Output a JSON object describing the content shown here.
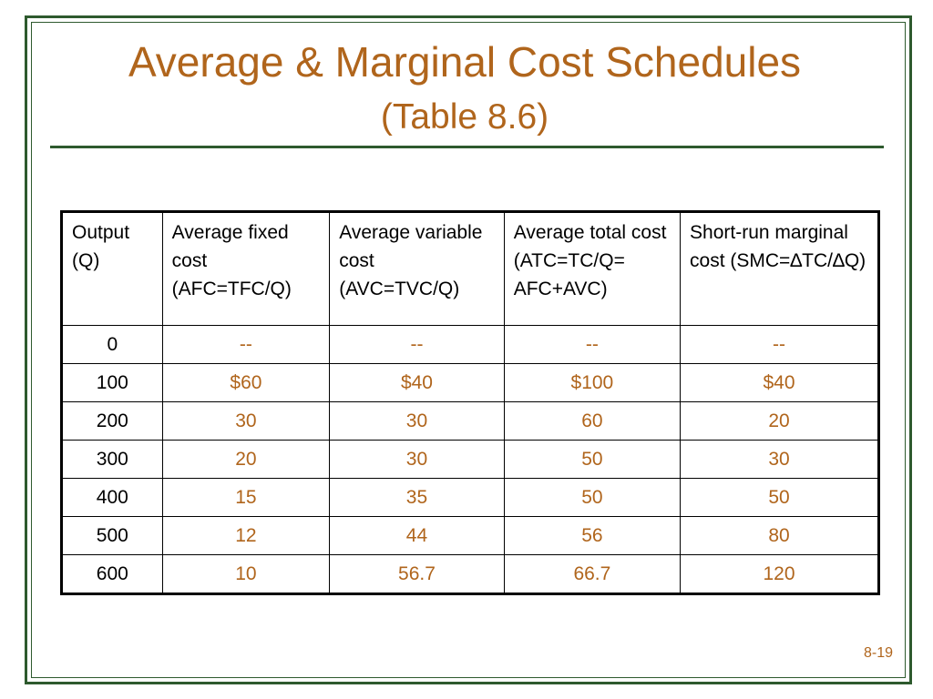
{
  "slide": {
    "title": "Average & Marginal Cost Schedules",
    "subtitle": "(Table 8.6)",
    "page_number": "8-19"
  },
  "table": {
    "headers": [
      "Output (Q)",
      "Average fixed cost (AFC=TFC/Q)",
      "Average variable cost (AVC=TVC/Q)",
      "Average total cost (ATC=TC/Q= AFC+AVC)",
      "Short-run marginal cost (SMC=∆TC/∆Q)"
    ],
    "rows": [
      {
        "q": "0",
        "afc": "--",
        "avc": "--",
        "atc": "--",
        "smc": "--"
      },
      {
        "q": "100",
        "afc": "$60",
        "avc": "$40",
        "atc": "$100",
        "smc": "$40"
      },
      {
        "q": "200",
        "afc": "30",
        "avc": "30",
        "atc": "60",
        "smc": "20"
      },
      {
        "q": "300",
        "afc": "20",
        "avc": "30",
        "atc": "50",
        "smc": "30"
      },
      {
        "q": "400",
        "afc": "15",
        "avc": "35",
        "atc": "50",
        "smc": "50"
      },
      {
        "q": "500",
        "afc": "12",
        "avc": "44",
        "atc": "56",
        "smc": "80"
      },
      {
        "q": "600",
        "afc": "10",
        "avc": "56.7",
        "atc": "66.7",
        "smc": "120"
      }
    ]
  },
  "colors": {
    "accent": "#b0651c",
    "frame": "#2e5a2e",
    "text": "#000000"
  }
}
